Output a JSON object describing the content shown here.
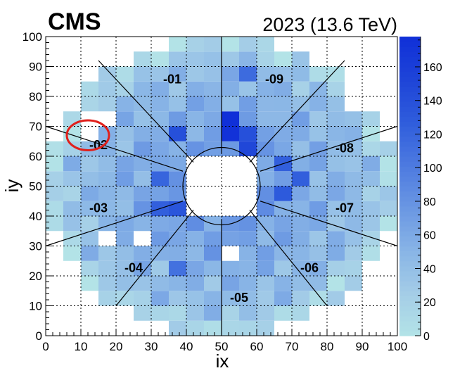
{
  "chart_data": {
    "type": "heatmap",
    "experiment": "CMS",
    "run_label": "2023 (13.6 TeV)",
    "xlabel": "ix",
    "ylabel": "iy",
    "xlim": [
      0,
      100
    ],
    "ylim": [
      0,
      100
    ],
    "x_ticks": [
      "0",
      "10",
      "20",
      "30",
      "40",
      "50",
      "60",
      "70",
      "80",
      "90",
      "100"
    ],
    "y_ticks": [
      "0",
      "10",
      "20",
      "30",
      "40",
      "50",
      "60",
      "70",
      "80",
      "90",
      "100"
    ],
    "z_range": [
      0,
      178
    ],
    "z_ticks": [
      "0",
      "20",
      "40",
      "60",
      "80",
      "100",
      "120",
      "140",
      "160"
    ],
    "grid": true,
    "colorscale": [
      "#b3e3e7",
      "#a4cde7",
      "#88b4e6",
      "#6a97e3",
      "#4d7ae0",
      "#2f5ddc",
      "#1e44d8",
      "#1030d8"
    ],
    "cell_size": 5,
    "outer_radius": 50,
    "inner_radius": 11,
    "sectors": [
      {
        "label": "-01",
        "x": 36,
        "y": 86
      },
      {
        "label": "-09",
        "x": 65,
        "y": 86
      },
      {
        "label": "-02",
        "x": 15,
        "y": 64
      },
      {
        "label": "-08",
        "x": 85,
        "y": 63
      },
      {
        "label": "-03",
        "x": 15,
        "y": 43
      },
      {
        "label": "-07",
        "x": 85,
        "y": 43
      },
      {
        "label": "-04",
        "x": 25,
        "y": 23
      },
      {
        "label": "-06",
        "x": 75,
        "y": 23
      },
      {
        "label": "-05",
        "x": 55,
        "y": 13
      }
    ],
    "sector_boundaries": [
      {
        "from": [
          50,
          100
        ],
        "to": [
          50,
          61
        ]
      },
      {
        "from": [
          50,
          39
        ],
        "to": [
          50,
          0
        ]
      },
      {
        "from": [
          61,
          55
        ],
        "to": [
          100,
          70
        ]
      },
      {
        "from": [
          61,
          45
        ],
        "to": [
          100,
          30
        ]
      },
      {
        "from": [
          39,
          55
        ],
        "to": [
          0,
          70
        ]
      },
      {
        "from": [
          39,
          45
        ],
        "to": [
          0,
          30
        ]
      },
      {
        "from": [
          42,
          58
        ],
        "to": [
          15,
          92
        ]
      },
      {
        "from": [
          58,
          58
        ],
        "to": [
          85,
          92
        ]
      },
      {
        "from": [
          42,
          42
        ],
        "to": [
          20,
          10
        ]
      },
      {
        "from": [
          58,
          42
        ],
        "to": [
          80,
          10
        ]
      }
    ],
    "highlight_circle": {
      "x": 12,
      "y": 67,
      "rx": 6,
      "ry": 5,
      "color": "#e0201c"
    },
    "dead_cells": [
      {
        "x": 10,
        "y": 65
      },
      {
        "x": 10,
        "y": 70
      },
      {
        "x": 15,
        "y": 70
      },
      {
        "x": 85,
        "y": 75
      },
      {
        "x": 85,
        "y": 80
      },
      {
        "x": 25,
        "y": 30
      },
      {
        "x": 50,
        "y": 25
      },
      {
        "x": 15,
        "y": 30
      }
    ],
    "hot_cells": [
      {
        "x": 50,
        "y": 65,
        "v": 175
      },
      {
        "x": 50,
        "y": 70,
        "v": 178
      },
      {
        "x": 55,
        "y": 60,
        "v": 150
      },
      {
        "x": 35,
        "y": 65,
        "v": 140
      },
      {
        "x": 40,
        "y": 40,
        "v": 150
      },
      {
        "x": 45,
        "y": 40,
        "v": 145
      },
      {
        "x": 35,
        "y": 40,
        "v": 135
      },
      {
        "x": 55,
        "y": 65,
        "v": 140
      },
      {
        "x": 65,
        "y": 45,
        "v": 130
      },
      {
        "x": 65,
        "y": 55,
        "v": 125
      },
      {
        "x": 70,
        "y": 50,
        "v": 125
      },
      {
        "x": 30,
        "y": 50,
        "v": 120
      },
      {
        "x": 30,
        "y": 40,
        "v": 125
      },
      {
        "x": 55,
        "y": 85,
        "v": 115
      },
      {
        "x": 35,
        "y": 20,
        "v": 110
      }
    ]
  }
}
